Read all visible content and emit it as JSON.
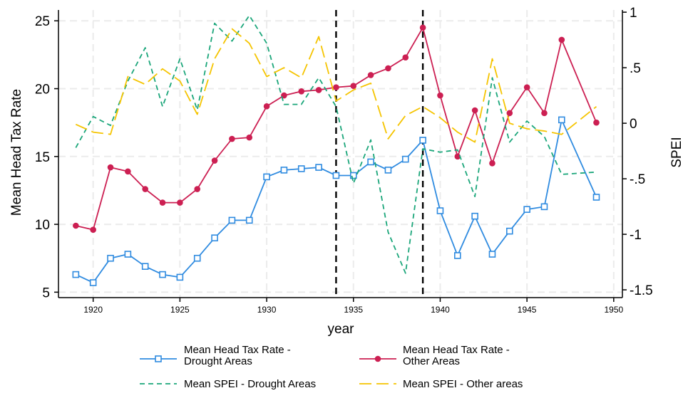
{
  "chart_data": {
    "type": "line",
    "xlabel": "year",
    "ylabel_left": "Mean Head Tax Rate",
    "ylabel_right": "SPEI",
    "xlim": [
      1918,
      1950.5
    ],
    "ylim_left": [
      4.6,
      25.8
    ],
    "ylim_right": [
      -1.57,
      1.02
    ],
    "x_ticks": [
      1920,
      1925,
      1930,
      1935,
      1940,
      1945,
      1950
    ],
    "y_ticks_left": [
      "5",
      "10",
      "15",
      "20",
      "25"
    ],
    "y_ticks_right": [
      "-1.5",
      "-1",
      "-.5",
      "0",
      ".5",
      "1"
    ],
    "y_ticks_right_values": [
      -1.5,
      -1,
      -0.5,
      0,
      0.5,
      1
    ],
    "grid": true,
    "vertical_lines": [
      1934,
      1939
    ],
    "legend_position": "bottom",
    "series": [
      {
        "name": "Mean Head Tax Rate - Drought Areas",
        "legend_lines": [
          "Mean Head Tax Rate -",
          "Drought Areas"
        ],
        "axis": "left",
        "color": "#2f8be0",
        "marker": "square",
        "style": "solid",
        "x": [
          1919,
          1920,
          1921,
          1922,
          1923,
          1924,
          1925,
          1926,
          1927,
          1928,
          1929,
          1930,
          1931,
          1932,
          1933,
          1934,
          1935,
          1936,
          1937,
          1938,
          1939,
          1940,
          1941,
          1942,
          1943,
          1944,
          1945,
          1946,
          1947,
          1949
        ],
        "y": [
          6.3,
          5.7,
          7.5,
          7.8,
          6.9,
          6.3,
          6.1,
          7.5,
          9.0,
          10.3,
          10.3,
          13.5,
          14.0,
          14.1,
          14.2,
          13.6,
          13.6,
          14.6,
          14.0,
          14.8,
          16.2,
          11.0,
          7.7,
          10.6,
          7.8,
          9.5,
          11.1,
          11.3,
          17.7,
          12.0
        ]
      },
      {
        "name": "Mean Head Tax Rate - Other Areas",
        "legend_lines": [
          "Mean Head Tax Rate -",
          "Other Areas"
        ],
        "axis": "left",
        "color": "#cc1f52",
        "marker": "circle",
        "style": "solid",
        "x": [
          1919,
          1920,
          1921,
          1922,
          1923,
          1924,
          1925,
          1926,
          1927,
          1928,
          1929,
          1930,
          1931,
          1932,
          1933,
          1934,
          1935,
          1936,
          1937,
          1938,
          1939,
          1940,
          1941,
          1942,
          1943,
          1944,
          1945,
          1946,
          1947,
          1949
        ],
        "y": [
          9.9,
          9.6,
          14.2,
          13.9,
          12.6,
          11.6,
          11.6,
          12.6,
          14.7,
          16.3,
          16.4,
          18.7,
          19.5,
          19.8,
          19.9,
          20.1,
          20.2,
          21.0,
          21.5,
          22.3,
          24.5,
          19.5,
          15.0,
          18.4,
          14.5,
          18.2,
          20.1,
          18.2,
          23.6,
          17.5
        ]
      },
      {
        "name": "Mean SPEI - Drought Areas",
        "legend_lines": [
          "Mean SPEI - Drought Areas"
        ],
        "axis": "right",
        "color": "#1ba67a",
        "marker": "none",
        "style": "dashed-short",
        "x": [
          1919,
          1920,
          1921,
          1922,
          1923,
          1924,
          1925,
          1926,
          1927,
          1928,
          1929,
          1930,
          1931,
          1932,
          1933,
          1934,
          1935,
          1936,
          1937,
          1938,
          1939,
          1940,
          1941,
          1942,
          1943,
          1944,
          1945,
          1946,
          1947,
          1949
        ],
        "y": [
          -0.22,
          0.06,
          -0.02,
          0.38,
          0.68,
          0.15,
          0.58,
          0.12,
          0.9,
          0.74,
          0.97,
          0.72,
          0.17,
          0.17,
          0.41,
          0.15,
          -0.54,
          -0.15,
          -0.98,
          -1.35,
          -0.23,
          -0.26,
          -0.24,
          -0.66,
          0.41,
          -0.17,
          0.02,
          -0.12,
          -0.46,
          -0.44
        ]
      },
      {
        "name": "Mean SPEI - Other areas",
        "legend_lines": [
          "Mean SPEI - Other areas"
        ],
        "axis": "right",
        "color": "#f5c400",
        "marker": "none",
        "style": "dashed-long",
        "x": [
          1919,
          1920,
          1921,
          1922,
          1923,
          1924,
          1925,
          1926,
          1927,
          1928,
          1929,
          1930,
          1931,
          1932,
          1933,
          1934,
          1935,
          1936,
          1937,
          1938,
          1939,
          1940,
          1941,
          1942,
          1943,
          1944,
          1945,
          1946,
          1947,
          1949
        ],
        "y": [
          -0.01,
          -0.08,
          -0.1,
          0.42,
          0.35,
          0.49,
          0.38,
          0.08,
          0.58,
          0.85,
          0.72,
          0.42,
          0.5,
          0.41,
          0.78,
          0.2,
          0.3,
          0.36,
          -0.14,
          0.07,
          0.15,
          0.05,
          -0.08,
          -0.17,
          0.58,
          0.0,
          -0.05,
          -0.07,
          -0.1,
          0.15
        ]
      }
    ]
  }
}
